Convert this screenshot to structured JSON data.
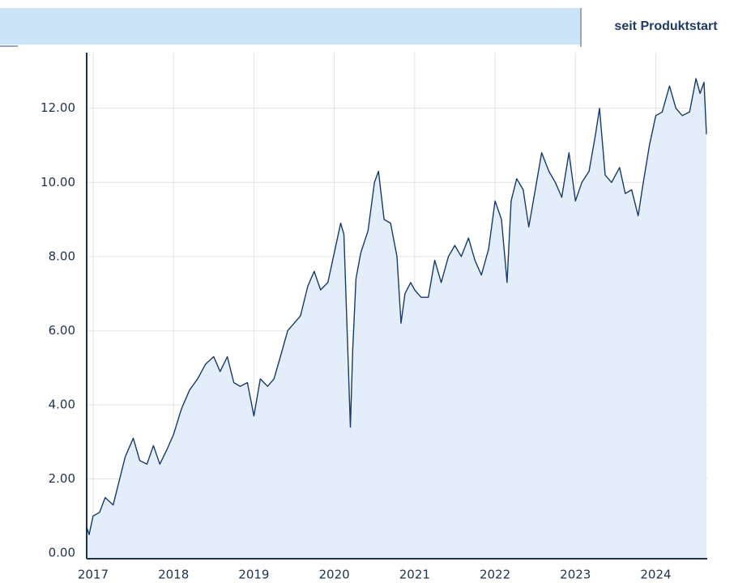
{
  "header": {
    "tab": "seit Produktstart"
  },
  "chart_data": {
    "type": "area",
    "x": [
      2016.92,
      2016.95,
      2017.0,
      2017.08,
      2017.15,
      2017.25,
      2017.33,
      2017.4,
      2017.5,
      2017.58,
      2017.67,
      2017.75,
      2017.83,
      2017.92,
      2018.0,
      2018.1,
      2018.2,
      2018.3,
      2018.4,
      2018.5,
      2018.58,
      2018.67,
      2018.75,
      2018.83,
      2018.92,
      2019.0,
      2019.08,
      2019.17,
      2019.25,
      2019.33,
      2019.42,
      2019.5,
      2019.58,
      2019.67,
      2019.75,
      2019.83,
      2019.92,
      2020.0,
      2020.08,
      2020.12,
      2020.16,
      2020.2,
      2020.23,
      2020.27,
      2020.33,
      2020.42,
      2020.5,
      2020.55,
      2020.62,
      2020.7,
      2020.78,
      2020.83,
      2020.88,
      2020.95,
      2021.0,
      2021.08,
      2021.17,
      2021.25,
      2021.33,
      2021.42,
      2021.5,
      2021.58,
      2021.67,
      2021.75,
      2021.83,
      2021.92,
      2022.0,
      2022.08,
      2022.15,
      2022.2,
      2022.27,
      2022.35,
      2022.42,
      2022.5,
      2022.58,
      2022.67,
      2022.75,
      2022.83,
      2022.92,
      2023.0,
      2023.08,
      2023.17,
      2023.25,
      2023.3,
      2023.37,
      2023.45,
      2023.55,
      2023.62,
      2023.7,
      2023.78,
      2023.83,
      2023.92,
      2024.0,
      2024.08,
      2024.17,
      2024.25,
      2024.33,
      2024.42,
      2024.5,
      2024.55,
      2024.6,
      2024.63
    ],
    "values": [
      0.7,
      0.5,
      1.0,
      1.1,
      1.5,
      1.3,
      2.0,
      2.6,
      3.1,
      2.5,
      2.4,
      2.9,
      2.4,
      2.8,
      3.2,
      3.9,
      4.4,
      4.7,
      5.1,
      5.3,
      4.9,
      5.3,
      4.6,
      4.5,
      4.6,
      3.7,
      4.7,
      4.5,
      4.7,
      5.3,
      6.0,
      6.2,
      6.4,
      7.2,
      7.6,
      7.1,
      7.3,
      8.1,
      8.9,
      8.6,
      6.0,
      3.4,
      5.5,
      7.4,
      8.1,
      8.7,
      10.0,
      10.3,
      9.0,
      8.9,
      8.0,
      6.2,
      7.0,
      7.3,
      7.1,
      6.9,
      6.9,
      7.9,
      7.3,
      8.0,
      8.3,
      8.0,
      8.5,
      7.9,
      7.5,
      8.2,
      9.5,
      9.0,
      7.3,
      9.5,
      10.1,
      9.8,
      8.8,
      9.8,
      10.8,
      10.3,
      10.0,
      9.6,
      10.8,
      9.5,
      10.0,
      10.3,
      11.3,
      12.0,
      10.2,
      10.0,
      10.4,
      9.7,
      9.8,
      9.1,
      9.8,
      11.0,
      11.8,
      11.9,
      12.6,
      12.0,
      11.8,
      11.9,
      12.8,
      12.4,
      12.7,
      11.3
    ],
    "color": "#163a6a",
    "fill": "#e4eefa",
    "xlim": [
      2016.92,
      2024.64
    ],
    "xticks": [
      2017,
      2018,
      2019,
      2020,
      2021,
      2022,
      2023,
      2024
    ],
    "ylim": [
      -0.15,
      13.5
    ],
    "yticks": [
      {
        "value": 0,
        "label": "0.00"
      },
      {
        "value": 2,
        "label": "2.00"
      },
      {
        "value": 4,
        "label": "4.00"
      },
      {
        "value": 6,
        "label": "6.00"
      },
      {
        "value": 8,
        "label": "8.00"
      },
      {
        "value": 10,
        "label": "10.00"
      },
      {
        "value": 12,
        "label": "12.00"
      }
    ],
    "grid": true
  }
}
